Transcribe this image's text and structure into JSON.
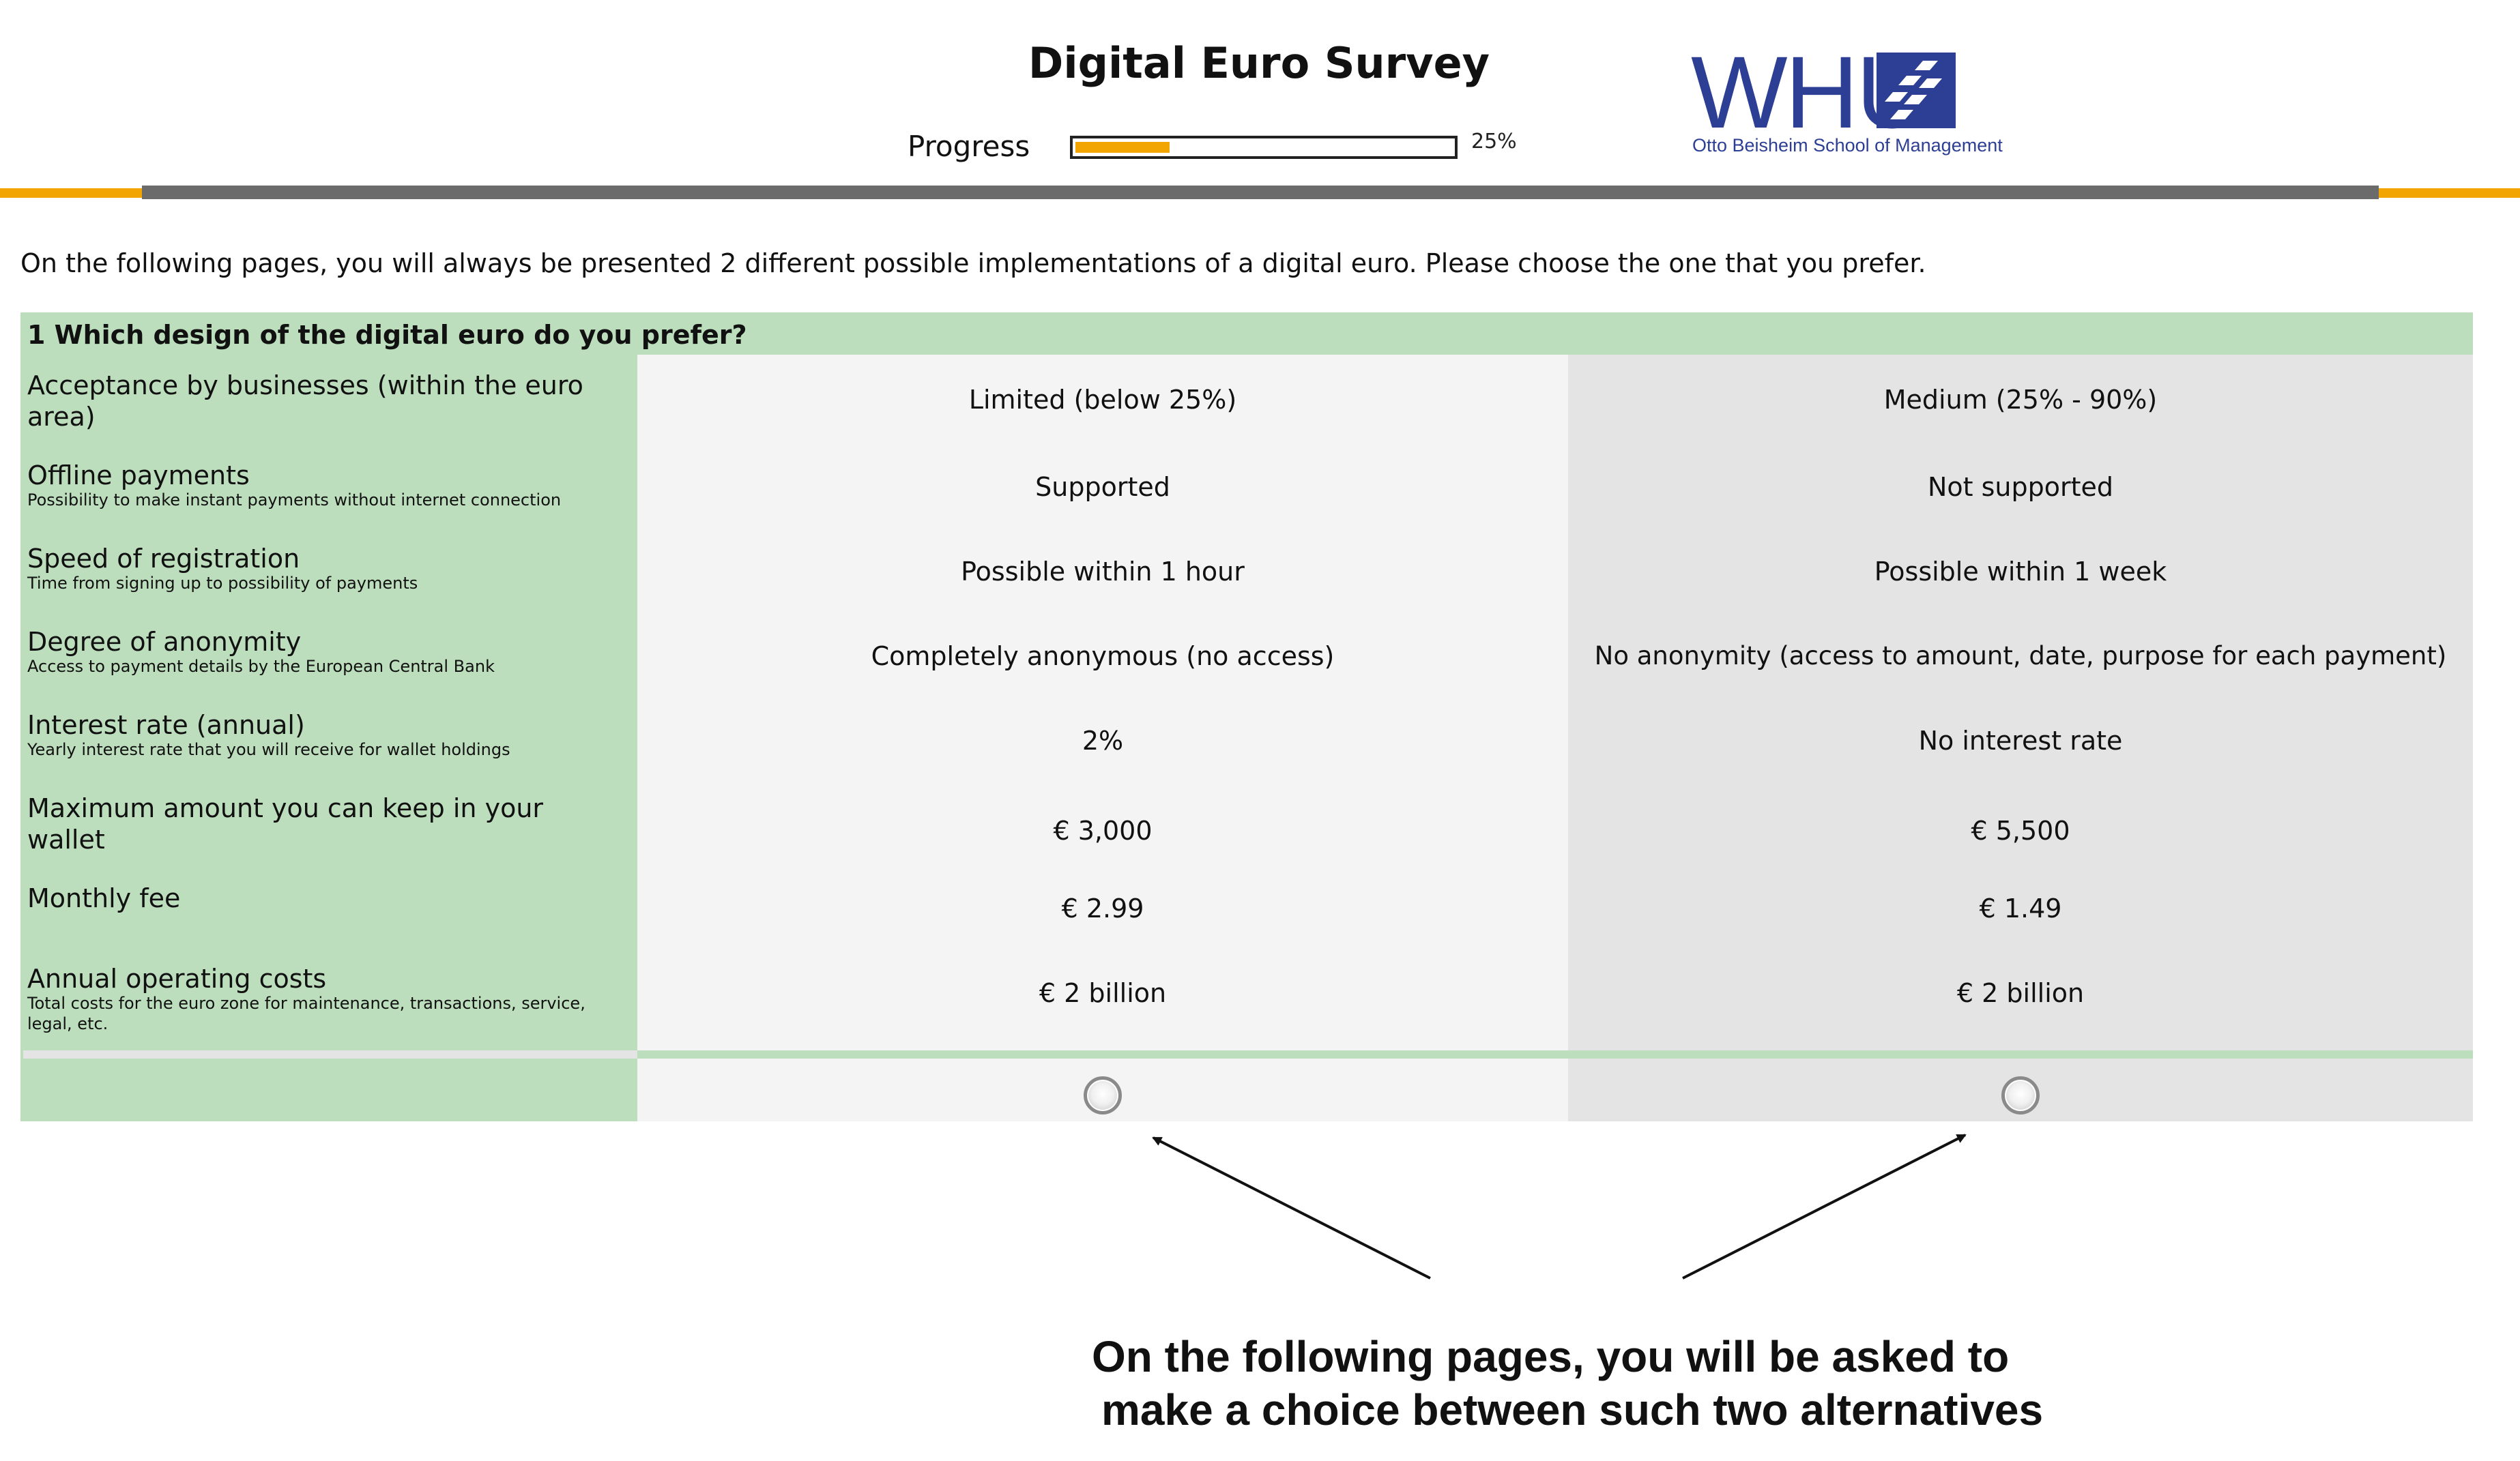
{
  "header": {
    "title": "Digital Euro Survey",
    "progress_label": "Progress",
    "progress_value": 0.25,
    "progress_text": "25%",
    "logo_text": "WHU",
    "logo_subtitle": "Otto Beisheim School of Management"
  },
  "intro_text": "On the following pages, you will always be presented 2 different possible implementations of a digital euro. Please choose the one that you prefer.",
  "question": "1 Which design of the digital euro do you prefer?",
  "attributes": [
    {
      "name": "Acceptance by businesses (within the euro area)",
      "description": "",
      "alt_a": "Limited (below 25%)",
      "alt_b": "Medium (25% - 90%)"
    },
    {
      "name": "Offline payments",
      "description": "Possibility to make instant payments without internet connection",
      "alt_a": "Supported",
      "alt_b": "Not supported"
    },
    {
      "name": "Speed of registration",
      "description": "Time from signing up to possibility of payments",
      "alt_a": "Possible within 1 hour",
      "alt_b": "Possible within 1 week"
    },
    {
      "name": "Degree of anonymity",
      "description": "Access to payment details by the European Central Bank",
      "alt_a": "Completely anonymous (no access)",
      "alt_b": "No anonymity (access to amount, date, purpose for each payment)"
    },
    {
      "name": "Interest rate (annual)",
      "description": "Yearly interest rate that you will receive for wallet holdings",
      "alt_a": "2%",
      "alt_b": "No interest rate"
    },
    {
      "name": "Maximum amount you can keep in your wallet",
      "description": "",
      "alt_a": "€ 3,000",
      "alt_b": "€ 5,500"
    },
    {
      "name": "Monthly fee",
      "description": "",
      "alt_a": "€ 2.99",
      "alt_b": "€ 1.49"
    },
    {
      "name": "Annual operating costs",
      "description": "Total costs for the euro zone for maintenance, transactions, service, legal, etc.",
      "alt_a": "€ 2 billion",
      "alt_b": "€ 2 billion"
    }
  ],
  "annotation": {
    "line1": "On the following pages, you will be asked to",
    "line2": "make a choice between such two alternatives"
  },
  "colors": {
    "label_bg": "#bcdebd",
    "alt_a_bg": "#f4f4f4",
    "alt_b_bg": "#e4e4e4",
    "accent": "#f2a500",
    "logo": "#2d3f95"
  }
}
